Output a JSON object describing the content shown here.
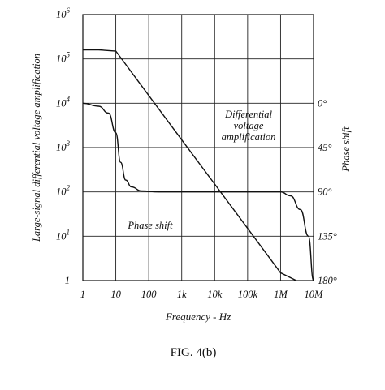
{
  "chart_data": {
    "type": "line",
    "title": "",
    "xlabel": "Frequency - Hz",
    "ylabel": "Large-signal differential voltage amplification",
    "y2label": "Phase shift",
    "x_scale": "log",
    "y_scale": "log",
    "xlim": [
      1,
      10000000
    ],
    "ylim": [
      1,
      1000000
    ],
    "y2lim": [
      0,
      180
    ],
    "x_tick_labels": [
      "1",
      "10",
      "100",
      "1k",
      "10k",
      "100k",
      "1M",
      "10M"
    ],
    "y_tick_labels": [
      {
        "base": "1",
        "exp": ""
      },
      {
        "base": "10",
        "exp": "1"
      },
      {
        "base": "10",
        "exp": "2"
      },
      {
        "base": "10",
        "exp": "3"
      },
      {
        "base": "10",
        "exp": "4"
      },
      {
        "base": "10",
        "exp": "5"
      },
      {
        "base": "10",
        "exp": "6"
      }
    ],
    "y2_tick_labels": [
      "0°",
      "45°",
      "90°",
      "135°",
      "180°"
    ],
    "grid": true,
    "series": [
      {
        "name": "Differential voltage amplification",
        "axis": "left",
        "x": [
          1,
          3,
          10,
          100,
          1000,
          10000,
          100000,
          1000000,
          3000000
        ],
        "y": [
          160000,
          160000,
          150000,
          15000,
          1500,
          150,
          15,
          1.5,
          1
        ]
      },
      {
        "name": "Phase shift",
        "axis": "right",
        "x": [
          1,
          3,
          6,
          10,
          14,
          20,
          30,
          60,
          200,
          1000000,
          2000000,
          4000000,
          7000000,
          10000000
        ],
        "y": [
          0,
          3,
          10,
          30,
          60,
          78,
          85,
          89,
          90,
          90,
          94,
          108,
          135,
          180
        ]
      }
    ],
    "annotations": [
      {
        "lines": [
          "Differential",
          "voltage",
          "amplification"
        ]
      },
      {
        "lines": [
          "Phase shift"
        ]
      }
    ]
  },
  "caption": "FIG. 4(b)"
}
